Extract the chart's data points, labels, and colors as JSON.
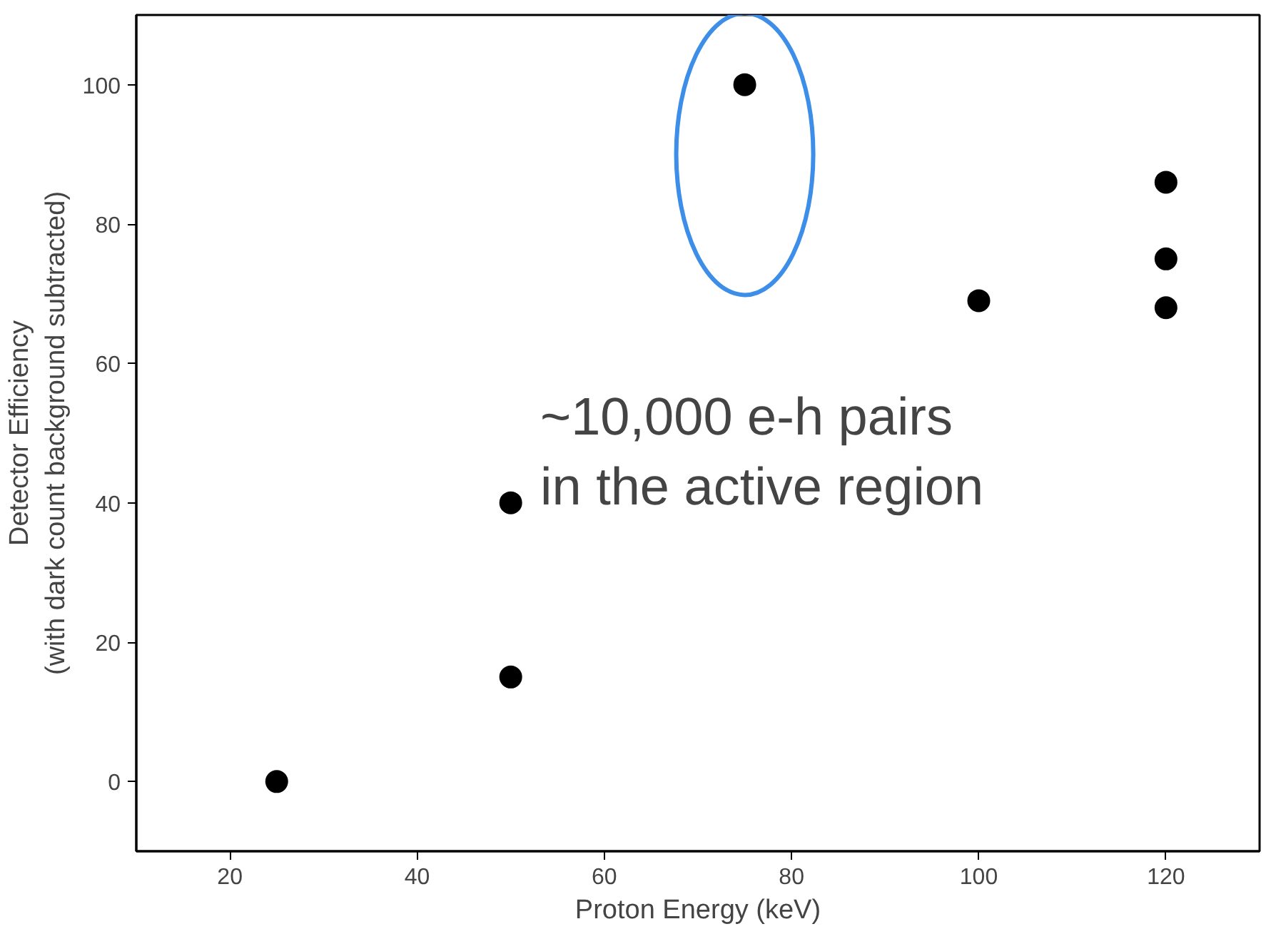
{
  "chart_data": {
    "type": "scatter",
    "xlabel": "Proton Energy (keV)",
    "ylabel": "Detector Efficiency\n(with dark count background subtracted)",
    "x": [
      25,
      50,
      50,
      75,
      100,
      120,
      120,
      120
    ],
    "series": [
      {
        "color": "#000000",
        "values": [
          0,
          40,
          15,
          100,
          69,
          86,
          75,
          68
        ]
      }
    ],
    "xlim": [
      10,
      130
    ],
    "ylim": [
      -10,
      110
    ],
    "xticks": [
      20,
      40,
      60,
      80,
      100,
      120
    ],
    "yticks": [
      0,
      20,
      40,
      60,
      80,
      100
    ],
    "grid": false,
    "marker": "circle",
    "annotations": [
      "~10,000 e-h pairs\nin the active region"
    ]
  }
}
